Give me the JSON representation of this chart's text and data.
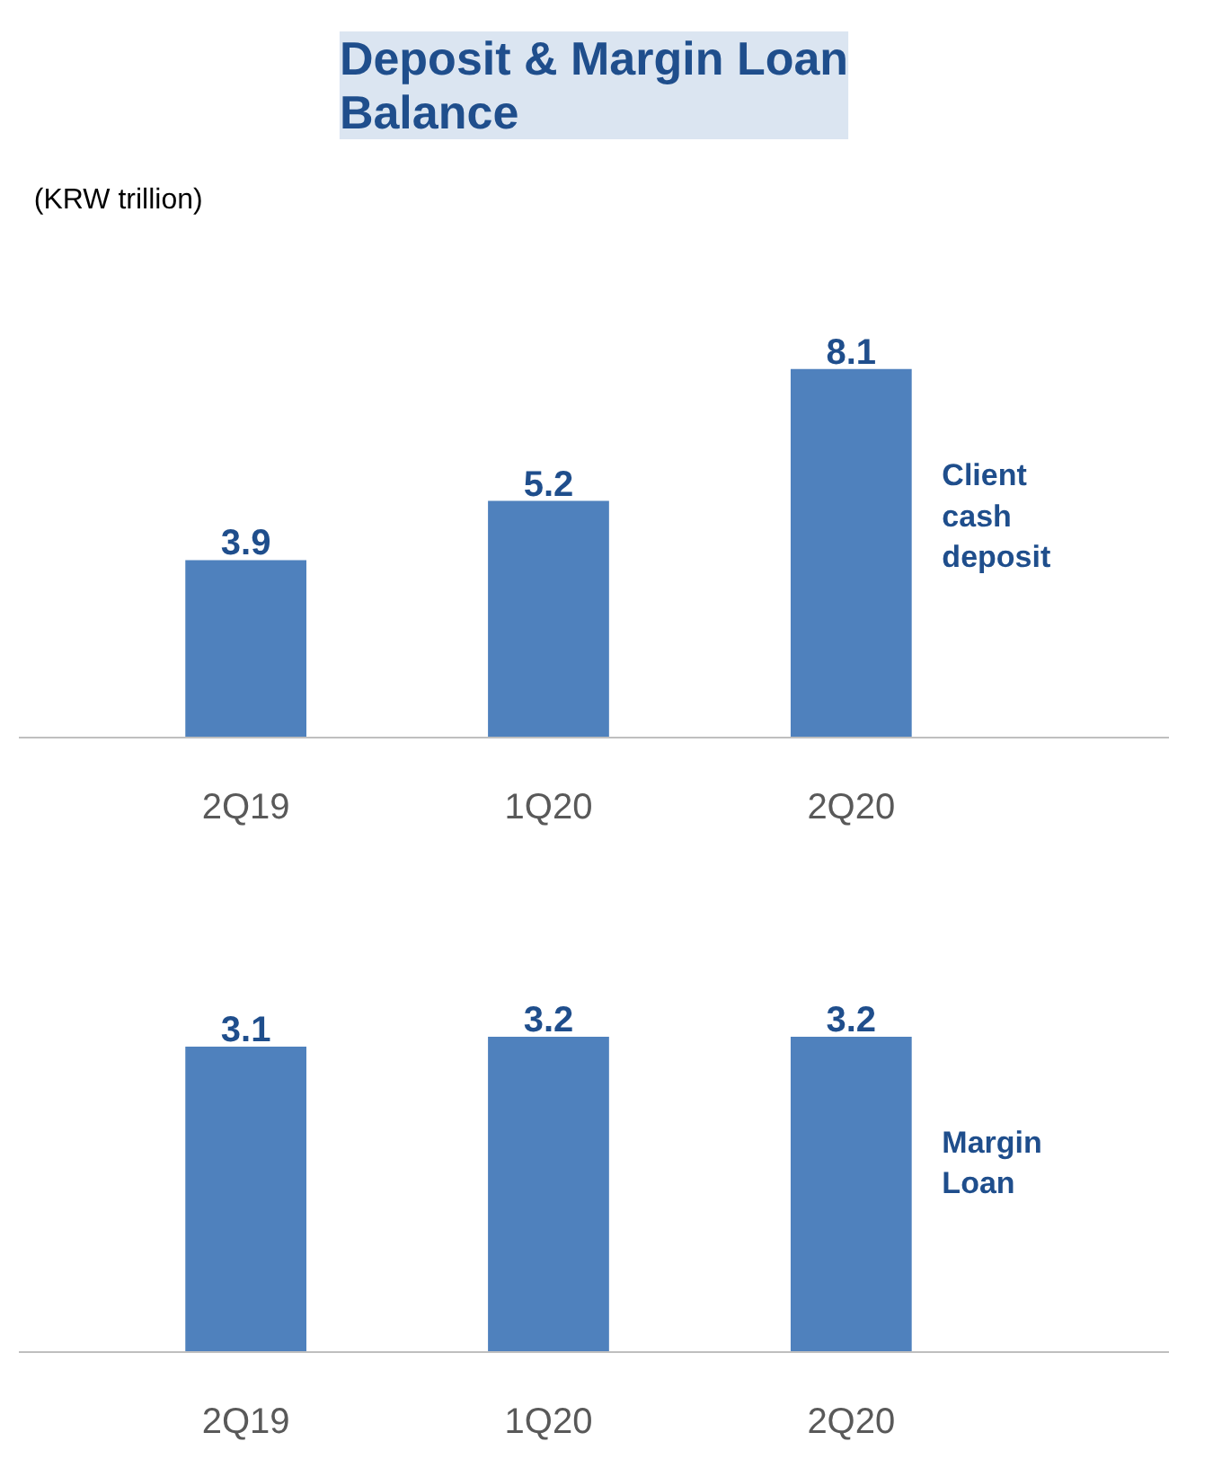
{
  "chart_data": [
    {
      "type": "bar",
      "title": "Deposit & Margin Loan\nBalance",
      "annotations": [
        "(KRW trillion)"
      ],
      "categories": [
        "2Q19",
        "1Q20",
        "2Q20"
      ],
      "series": [
        {
          "name": "Client cash deposit",
          "color": "#4f81bd",
          "values": [
            3.9,
            5.2,
            8.1
          ]
        }
      ],
      "data_labels": true
    },
    {
      "type": "bar",
      "categories": [
        "2Q19",
        "1Q20",
        "2Q20"
      ],
      "series": [
        {
          "name": "Margin Loan",
          "color": "#4f81bd",
          "values": [
            3.1,
            3.2,
            3.2
          ]
        }
      ],
      "data_labels": true
    }
  ]
}
